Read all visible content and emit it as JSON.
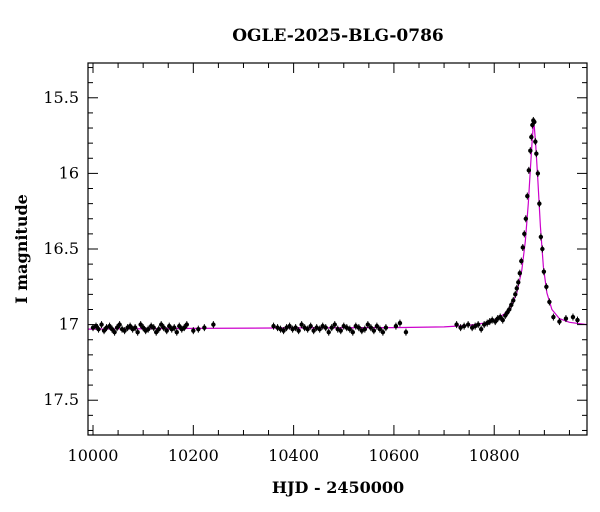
{
  "chart_data": {
    "type": "scatter",
    "title": "OGLE-2025-BLG-0786",
    "xlabel": "HJD - 2450000",
    "ylabel": "I magnitude",
    "xlim": [
      9990,
      10985
    ],
    "ylim": [
      17.73,
      15.27
    ],
    "y_inverted": true,
    "x_ticks": [
      "10000",
      "10200",
      "10400",
      "10600",
      "10800"
    ],
    "y_ticks": [
      "15.5",
      "16",
      "16.5",
      "17",
      "17.5"
    ],
    "colors": {
      "data": "#000000",
      "model": "#cc00cc"
    },
    "model": {
      "t0": 10878,
      "tE": 20,
      "u0": 0.08,
      "baseline": 17.0,
      "points": [
        [
          9990,
          17.03
        ],
        [
          10200,
          17.025
        ],
        [
          10400,
          17.022
        ],
        [
          10600,
          17.02
        ],
        [
          10700,
          17.015
        ],
        [
          10750,
          17.005
        ],
        [
          10780,
          16.99
        ],
        [
          10800,
          16.97
        ],
        [
          10820,
          16.93
        ],
        [
          10835,
          16.87
        ],
        [
          10845,
          16.79
        ],
        [
          10855,
          16.64
        ],
        [
          10862,
          16.45
        ],
        [
          10868,
          16.2
        ],
        [
          10872,
          15.98
        ],
        [
          10875,
          15.82
        ],
        [
          10878,
          15.68
        ],
        [
          10880,
          15.69
        ],
        [
          10883,
          15.82
        ],
        [
          10887,
          16.05
        ],
        [
          10892,
          16.35
        ],
        [
          10898,
          16.62
        ],
        [
          10905,
          16.79
        ],
        [
          10915,
          16.9
        ],
        [
          10930,
          16.96
        ],
        [
          10950,
          16.985
        ],
        [
          10985,
          17.0
        ]
      ]
    },
    "series": [
      {
        "x": [
          10000,
          10006,
          10011,
          10017,
          10022,
          10027,
          10033,
          10038,
          10043,
          10048,
          10053,
          10058,
          10063,
          10069,
          10074,
          10079,
          10084,
          10089,
          10095,
          10100,
          10105,
          10110,
          10116,
          10121,
          10126,
          10131,
          10136,
          10141,
          10147,
          10152,
          10157,
          10162,
          10167,
          10172,
          10177,
          10182,
          10187,
          10200,
          10210,
          10222,
          10240,
          10360,
          10368,
          10374,
          10380,
          10386,
          10392,
          10398,
          10404,
          10410,
          10416,
          10422,
          10428,
          10434,
          10440,
          10446,
          10452,
          10458,
          10464,
          10470,
          10476,
          10482,
          10488,
          10494,
          10500,
          10506,
          10512,
          10518,
          10524,
          10530,
          10536,
          10542,
          10548,
          10554,
          10560,
          10566,
          10572,
          10578,
          10584,
          10604,
          10612,
          10624,
          10725,
          10733,
          10740,
          10748,
          10756,
          10762,
          10768,
          10774,
          10780,
          10786,
          10791,
          10796,
          10802,
          10807,
          10812,
          10817,
          10822,
          10826,
          10830,
          10834,
          10838,
          10842,
          10845,
          10848,
          10851,
          10854,
          10857,
          10860,
          10863,
          10866,
          10869,
          10872,
          10874,
          10876,
          10878,
          10880,
          10882,
          10884,
          10887,
          10890,
          10893,
          10896,
          10899,
          10904,
          10910,
          10918,
          10930,
          10943,
          10957,
          10966
        ],
        "y": [
          17.02,
          17.01,
          17.03,
          17.0,
          17.04,
          17.02,
          17.01,
          17.03,
          17.05,
          17.02,
          17.0,
          17.03,
          17.04,
          17.02,
          17.01,
          17.03,
          17.02,
          17.05,
          17.0,
          17.02,
          17.04,
          17.03,
          17.01,
          17.02,
          17.05,
          17.03,
          17.0,
          17.02,
          17.04,
          17.01,
          17.03,
          17.02,
          17.05,
          17.01,
          17.03,
          17.02,
          17.0,
          17.04,
          17.03,
          17.02,
          17.0,
          17.01,
          17.02,
          17.03,
          17.04,
          17.02,
          17.01,
          17.03,
          17.02,
          17.04,
          17.0,
          17.02,
          17.03,
          17.01,
          17.04,
          17.02,
          17.03,
          17.01,
          17.02,
          17.05,
          17.02,
          17.0,
          17.03,
          17.04,
          17.01,
          17.02,
          17.03,
          17.05,
          17.01,
          17.02,
          17.04,
          17.03,
          17.0,
          17.02,
          17.04,
          17.01,
          17.03,
          17.05,
          17.02,
          17.01,
          16.99,
          17.05,
          17.0,
          17.02,
          17.01,
          17.0,
          17.02,
          17.01,
          17.0,
          17.03,
          17.0,
          16.99,
          16.98,
          16.97,
          16.98,
          16.96,
          16.95,
          16.97,
          16.94,
          16.92,
          16.9,
          16.87,
          16.84,
          16.8,
          16.76,
          16.72,
          16.66,
          16.58,
          16.49,
          16.4,
          16.3,
          16.15,
          15.98,
          15.85,
          15.76,
          15.68,
          15.65,
          15.66,
          15.79,
          15.87,
          16.0,
          16.2,
          16.42,
          16.5,
          16.65,
          16.75,
          16.85,
          16.95,
          16.98,
          16.96,
          16.95,
          16.97
        ]
      }
    ]
  }
}
